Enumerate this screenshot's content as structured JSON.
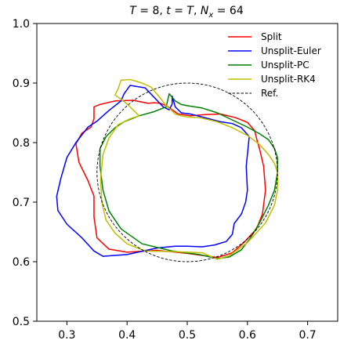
{
  "chart_data": {
    "type": "line",
    "title": {
      "T_sym": "T",
      "T_value": " = 8, ",
      "t_sym": "t",
      "t_eq": " = ",
      "t_value": "T",
      "sep": ", ",
      "N_sym": "N",
      "N_sub": "x",
      "N_value": " = 64"
    },
    "xlabel": "",
    "ylabel": "",
    "xlim": [
      0.25,
      0.75
    ],
    "ylim": [
      0.5,
      1.0
    ],
    "xticks": [
      0.3,
      0.4,
      0.5,
      0.6,
      0.7
    ],
    "xtick_labels": [
      "0.3",
      "0.4",
      "0.5",
      "0.6",
      "0.7"
    ],
    "yticks": [
      0.5,
      0.6,
      0.7,
      0.8,
      0.9,
      1.0
    ],
    "ytick_labels": [
      "0.5",
      "0.6",
      "0.7",
      "0.8",
      "0.9",
      "1.0"
    ],
    "grid": false,
    "legend_position": "top-right",
    "series": [
      {
        "name": "Split",
        "color": "#ff0000",
        "dash": "solid",
        "x": [
          0.435,
          0.41,
          0.38,
          0.355,
          0.345,
          0.345,
          0.34,
          0.325,
          0.315,
          0.32,
          0.335,
          0.345,
          0.345,
          0.35,
          0.37,
          0.4,
          0.45,
          0.5,
          0.55,
          0.575,
          0.595,
          0.615,
          0.625,
          0.63,
          0.627,
          0.62,
          0.617,
          0.612,
          0.6,
          0.58,
          0.555,
          0.53,
          0.505,
          0.485,
          0.475,
          0.465,
          0.455,
          0.445,
          0.435
        ],
        "y": [
          0.866,
          0.871,
          0.87,
          0.864,
          0.86,
          0.84,
          0.826,
          0.816,
          0.798,
          0.767,
          0.736,
          0.71,
          0.675,
          0.64,
          0.621,
          0.616,
          0.619,
          0.614,
          0.607,
          0.615,
          0.633,
          0.655,
          0.68,
          0.72,
          0.76,
          0.79,
          0.8,
          0.82,
          0.834,
          0.842,
          0.848,
          0.847,
          0.845,
          0.848,
          0.855,
          0.862,
          0.866,
          0.867,
          0.866
        ]
      },
      {
        "name": "Unsplit-Euler",
        "color": "#0000ff",
        "dash": "solid",
        "x": [
          0.395,
          0.39,
          0.37,
          0.35,
          0.335,
          0.315,
          0.3,
          0.29,
          0.283,
          0.285,
          0.3,
          0.325,
          0.345,
          0.36,
          0.4,
          0.45,
          0.48,
          0.5,
          0.525,
          0.545,
          0.565,
          0.575,
          0.578,
          0.59,
          0.597,
          0.6,
          0.598,
          0.603,
          0.59,
          0.575,
          0.555,
          0.525,
          0.505,
          0.49,
          0.48,
          0.475,
          0.475,
          0.47,
          0.46,
          0.43,
          0.405,
          0.395
        ],
        "y": [
          0.882,
          0.87,
          0.854,
          0.836,
          0.826,
          0.8,
          0.775,
          0.74,
          0.71,
          0.686,
          0.663,
          0.64,
          0.618,
          0.609,
          0.612,
          0.623,
          0.626,
          0.626,
          0.625,
          0.628,
          0.634,
          0.646,
          0.664,
          0.68,
          0.7,
          0.72,
          0.76,
          0.81,
          0.825,
          0.832,
          0.835,
          0.843,
          0.848,
          0.85,
          0.86,
          0.878,
          0.865,
          0.855,
          0.86,
          0.892,
          0.896,
          0.882
        ]
      },
      {
        "name": "Unsplit-PC",
        "color": "#008000",
        "dash": "solid",
        "x": [
          0.42,
          0.395,
          0.38,
          0.365,
          0.355,
          0.355,
          0.36,
          0.37,
          0.39,
          0.425,
          0.475,
          0.52,
          0.55,
          0.57,
          0.59,
          0.605,
          0.62,
          0.635,
          0.645,
          0.65,
          0.65,
          0.645,
          0.635,
          0.62,
          0.6,
          0.575,
          0.55,
          0.525,
          0.5,
          0.49,
          0.48,
          0.475,
          0.47,
          0.465,
          0.445,
          0.42
        ],
        "y": [
          0.845,
          0.835,
          0.825,
          0.81,
          0.79,
          0.76,
          0.72,
          0.685,
          0.655,
          0.63,
          0.618,
          0.612,
          0.605,
          0.608,
          0.62,
          0.64,
          0.665,
          0.695,
          0.72,
          0.75,
          0.775,
          0.79,
          0.805,
          0.815,
          0.826,
          0.838,
          0.85,
          0.858,
          0.862,
          0.864,
          0.87,
          0.876,
          0.882,
          0.86,
          0.852,
          0.845
        ]
      },
      {
        "name": "Unsplit-RK4",
        "color": "#bfbf00",
        "dash": "solid",
        "x": [
          0.385,
          0.39,
          0.405,
          0.425,
          0.44,
          0.455,
          0.465,
          0.475,
          0.48,
          0.49,
          0.5,
          0.52,
          0.55,
          0.575,
          0.6,
          0.62,
          0.635,
          0.645,
          0.65,
          0.65,
          0.645,
          0.63,
          0.6,
          0.57,
          0.55,
          0.525,
          0.475,
          0.43,
          0.4,
          0.38,
          0.365,
          0.358,
          0.356,
          0.36,
          0.37,
          0.385,
          0.405,
          0.42,
          0.4,
          0.38,
          0.385
        ],
        "y": [
          0.89,
          0.905,
          0.906,
          0.9,
          0.893,
          0.875,
          0.862,
          0.853,
          0.848,
          0.845,
          0.843,
          0.842,
          0.835,
          0.825,
          0.812,
          0.797,
          0.78,
          0.765,
          0.75,
          0.72,
          0.695,
          0.665,
          0.632,
          0.61,
          0.604,
          0.615,
          0.617,
          0.618,
          0.63,
          0.648,
          0.67,
          0.7,
          0.74,
          0.78,
          0.808,
          0.83,
          0.84,
          0.845,
          0.865,
          0.88,
          0.89
        ]
      },
      {
        "name": "Ref.",
        "color": "#000000",
        "dash": "dashed",
        "type": "circle",
        "center": [
          0.5,
          0.75
        ],
        "radius": 0.15
      }
    ]
  }
}
